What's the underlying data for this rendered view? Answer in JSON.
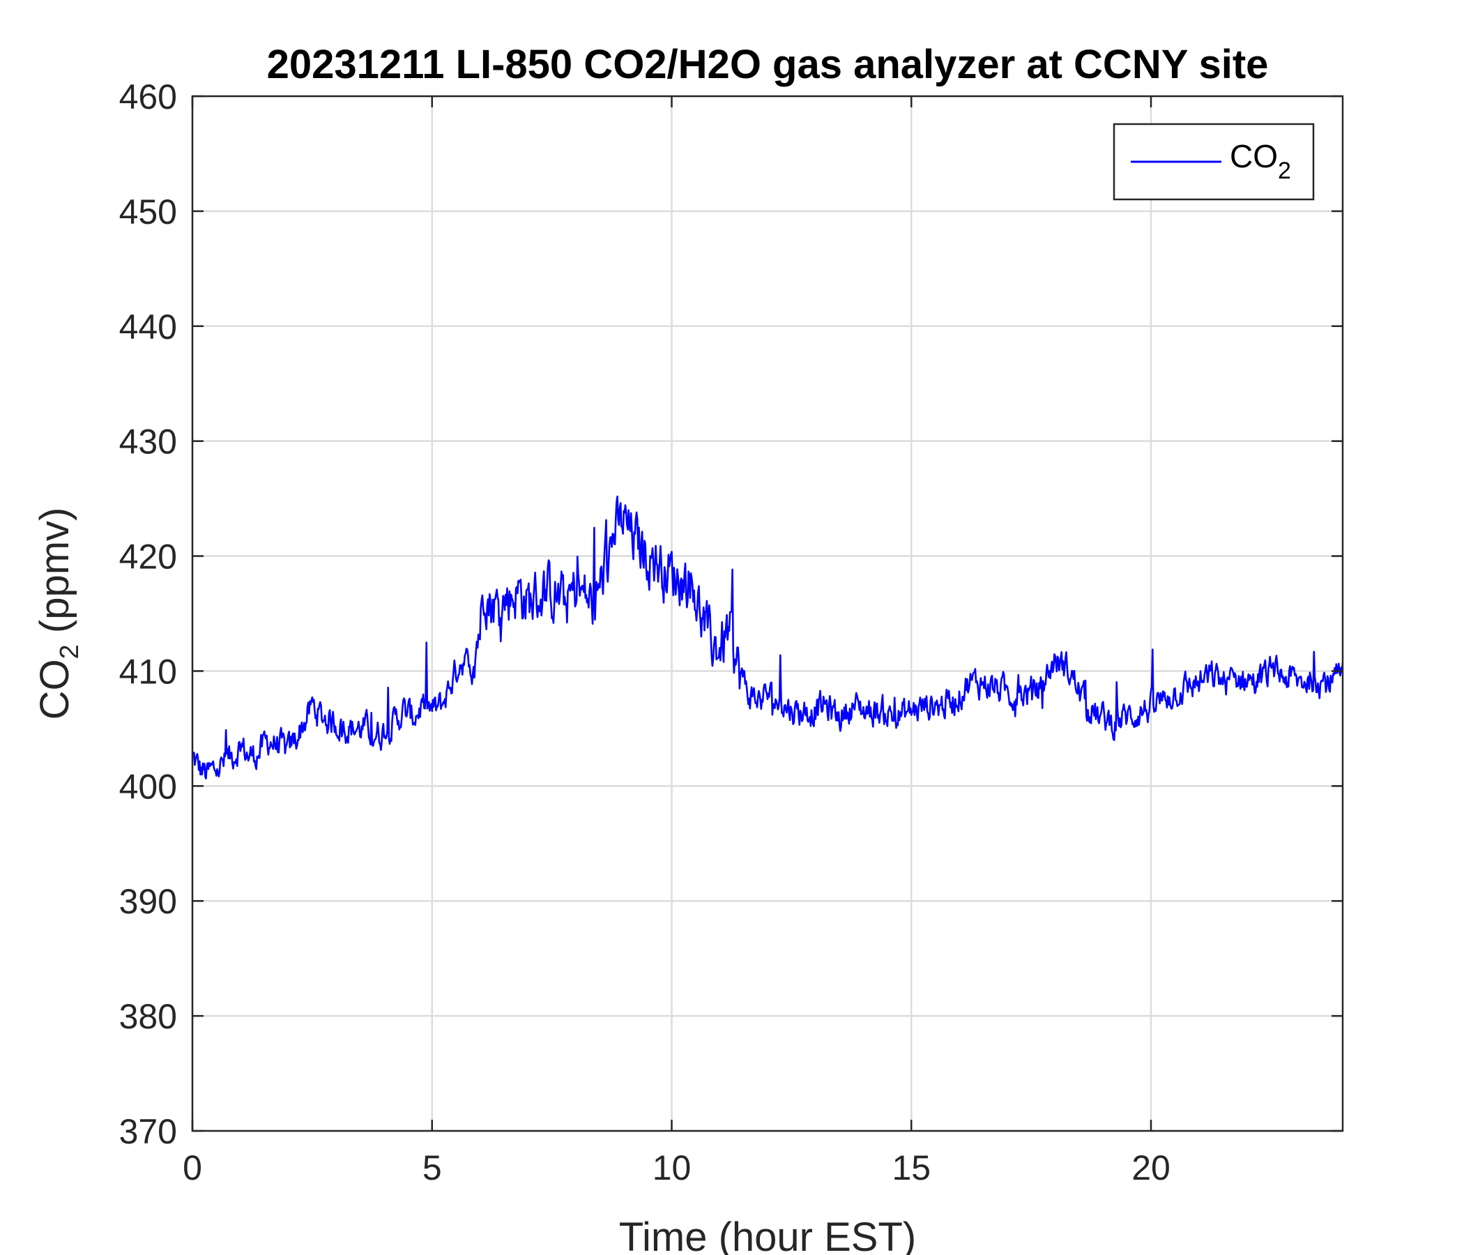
{
  "chart_data": {
    "type": "line",
    "title": "20231211 LI-850 CO2/H2O gas analyzer at CCNY site",
    "xlabel": "Time (hour EST)",
    "ylabel": {
      "main": "CO",
      "sub": "2",
      "suffix": " (ppmv)"
    },
    "xlim": [
      0,
      24
    ],
    "ylim": [
      370,
      460
    ],
    "xticks": [
      0,
      5,
      10,
      15,
      20
    ],
    "yticks": [
      370,
      380,
      390,
      400,
      410,
      420,
      430,
      440,
      450,
      460
    ],
    "grid": true,
    "legend": {
      "position": "top-right",
      "entries": [
        {
          "main": "CO",
          "sub": "2"
        }
      ]
    },
    "series": [
      {
        "name": "CO2",
        "color": "#0000ff",
        "noisy": true,
        "x": [
          0,
          0.15,
          0.3,
          0.5,
          0.8,
          1.0,
          1.2,
          1.4,
          1.6,
          1.8,
          2.0,
          2.2,
          2.4,
          2.5,
          2.7,
          3.0,
          3.3,
          3.6,
          3.9,
          4.2,
          4.4,
          4.6,
          4.8,
          5.0,
          5.2,
          5.4,
          5.6,
          5.8,
          6.0,
          6.1,
          6.2,
          6.4,
          6.6,
          6.8,
          7.0,
          7.2,
          7.4,
          7.6,
          7.8,
          8.0,
          8.2,
          8.4,
          8.6,
          8.8,
          9.0,
          9.2,
          9.4,
          9.6,
          9.8,
          10.0,
          10.2,
          10.4,
          10.6,
          10.8,
          11.0,
          11.2,
          11.4,
          11.6,
          11.8,
          12.0,
          12.3,
          12.6,
          12.9,
          13.2,
          13.5,
          13.8,
          14.1,
          14.4,
          14.7,
          15.0,
          15.3,
          15.6,
          15.9,
          16.2,
          16.5,
          16.8,
          17.1,
          17.4,
          17.7,
          18.0,
          18.3,
          18.6,
          18.9,
          19.2,
          19.5,
          19.8,
          20.1,
          20.4,
          20.7,
          21.0,
          21.3,
          21.6,
          21.9,
          22.2,
          22.5,
          22.8,
          23.1,
          23.4,
          23.7,
          24.0
        ],
        "y": [
          402.5,
          401.5,
          401.0,
          401.5,
          402.5,
          403.5,
          402.5,
          403.0,
          404.0,
          403.5,
          403.0,
          404.5,
          406.0,
          407.0,
          406.0,
          405.5,
          405.0,
          405.0,
          404.5,
          405.5,
          406.5,
          406.0,
          407.0,
          406.5,
          407.0,
          409.0,
          411.0,
          410.5,
          414.0,
          418.0,
          416.0,
          415.5,
          416.5,
          417.0,
          416.0,
          416.5,
          417.0,
          416.5,
          416.0,
          417.0,
          416.5,
          415.5,
          419.0,
          422.0,
          423.0,
          421.5,
          420.5,
          420.0,
          419.0,
          418.5,
          418.0,
          418.0,
          415.0,
          412.5,
          412.0,
          413.5,
          410.0,
          408.0,
          407.5,
          408.0,
          407.0,
          406.5,
          406.5,
          407.0,
          406.0,
          407.0,
          406.5,
          406.5,
          406.0,
          406.5,
          407.0,
          407.0,
          407.5,
          409.0,
          409.0,
          408.5,
          408.0,
          408.0,
          408.5,
          411.0,
          410.0,
          407.5,
          406.0,
          405.5,
          406.0,
          406.5,
          407.0,
          408.0,
          408.5,
          409.0,
          409.5,
          409.0,
          409.5,
          409.0,
          410.0,
          409.5,
          409.0,
          409.5,
          409.0,
          409.5
        ]
      }
    ]
  }
}
